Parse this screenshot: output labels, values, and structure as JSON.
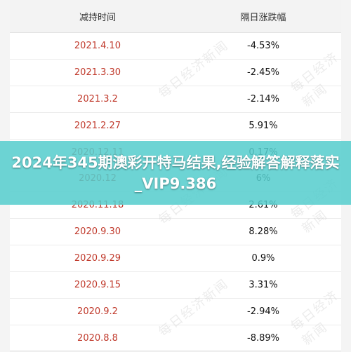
{
  "table": {
    "headers": [
      "减持时间",
      "隔日涨跌幅"
    ],
    "rows": [
      {
        "date": "2021.4.10",
        "change": "-4.53%"
      },
      {
        "date": "2021.3.30",
        "change": "-2.45%"
      },
      {
        "date": "2021.3.2",
        "change": "-2.14%"
      },
      {
        "date": "2021.2.27",
        "change": "5.91%"
      },
      {
        "date": "2020.12.11",
        "change": "0.17%"
      },
      {
        "date": "2020.12",
        "change": "6%"
      },
      {
        "date": "2020.11.18",
        "change": "2.61%"
      },
      {
        "date": "2020.9.30",
        "change": "8.28%"
      },
      {
        "date": "2020.9.29",
        "change": "0.9%"
      },
      {
        "date": "2020.9.15",
        "change": "3.31%"
      },
      {
        "date": "2020.9.2",
        "change": "-2.94%"
      },
      {
        "date": "2020.8.8",
        "change": "-8.89%"
      }
    ]
  },
  "banner": {
    "text": "2024年345期澳彩开特马结果,经验解答解释落实_VIP9.386"
  },
  "watermark": "每日经济新闻",
  "colors": {
    "date_text": "#c0392b",
    "banner_bg": "#55cdcd"
  }
}
